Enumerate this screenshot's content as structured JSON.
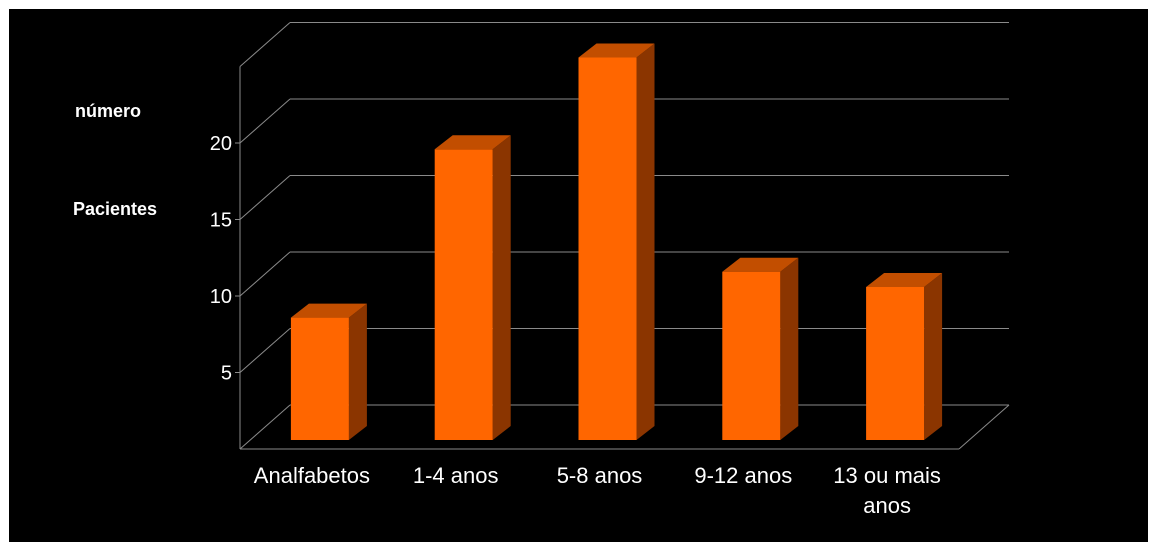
{
  "chart_data": {
    "type": "bar",
    "title": "",
    "ylabel_lines": [
      "número",
      "Pacientes"
    ],
    "xlabel": "",
    "categories": [
      [
        "Analfabetos"
      ],
      [
        "1-4 anos"
      ],
      [
        "5-8 anos"
      ],
      [
        "9-12 anos"
      ],
      [
        "13 ou mais",
        "anos"
      ]
    ],
    "values": [
      8,
      19,
      25,
      11,
      10
    ],
    "ylim": [
      0,
      25
    ],
    "yticks": [
      5,
      10,
      15,
      20
    ],
    "grid": true,
    "legend": "none",
    "three_d": true
  },
  "colors": {
    "background": "#000000",
    "bar_front": "#FF6600",
    "bar_side": "#8B3500",
    "bar_top": "#C24E00",
    "grid": "#8a8a8a",
    "text": "#ffffff"
  }
}
